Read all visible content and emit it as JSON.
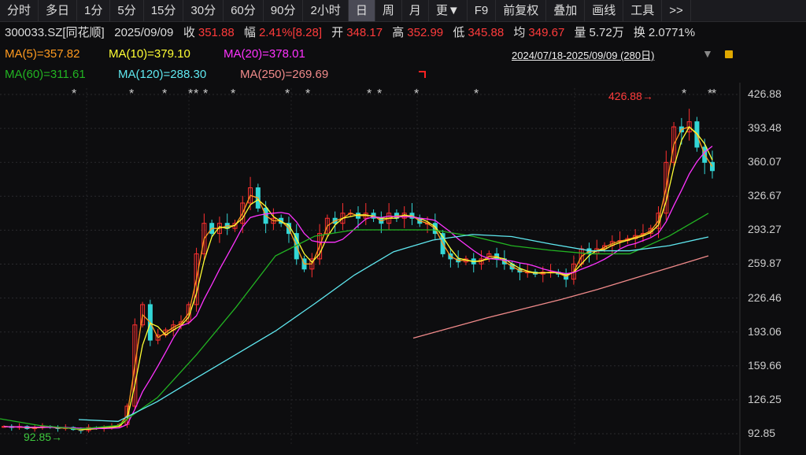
{
  "toolbar": {
    "items": [
      "分时",
      "多日",
      "1分",
      "5分",
      "15分",
      "30分",
      "60分",
      "90分",
      "2小时",
      "日",
      "周",
      "月",
      "更▼",
      "F9",
      "前复权",
      "叠加",
      "画线",
      "工具",
      ">>"
    ],
    "active": "日"
  },
  "quote": {
    "code": "300033.SZ[同花顺]",
    "date": "2025/09/09",
    "close_label": "收",
    "close": "351.88",
    "change_label": "幅",
    "change": "2.41%[8.28]",
    "open_label": "开",
    "open": "348.17",
    "high_label": "高",
    "high": "352.99",
    "low_label": "低",
    "low": "345.88",
    "avg_label": "均",
    "avg": "349.67",
    "volume_label": "量",
    "volume": "5.72万",
    "turnover_label": "换",
    "turnover": "2.0771%"
  },
  "ma_legend": [
    {
      "text": "MA(5)=357.82",
      "color": "#ff9a1f"
    },
    {
      "text": "MA(10)=379.10",
      "color": "#ffff33"
    },
    {
      "text": "MA(20)=378.01",
      "color": "#ff33ff"
    },
    {
      "text": "MA(60)=311.61",
      "color": "#22b422"
    },
    {
      "text": "MA(120)=288.30",
      "color": "#5fe8f0"
    },
    {
      "text": "MA(250)=269.69",
      "color": "#f08a8a"
    }
  ],
  "range": {
    "text": "2024/07/18-2025/09/09 (280日)",
    "dropdown_icon": "triangle-down-icon",
    "lock_icon": "lock-icon"
  },
  "colors": {
    "up": "#ff3030",
    "down": "#33d6d6"
  },
  "chart_data": {
    "type": "candlestick",
    "y_ticks": [
      "426.88",
      "393.48",
      "360.07",
      "326.67",
      "293.27",
      "259.87",
      "226.46",
      "193.06",
      "159.66",
      "126.25",
      "92.85"
    ],
    "ylim": [
      92.85,
      426.88
    ],
    "annotations": {
      "max": "426.88",
      "min": "92.85"
    },
    "closes": [
      100,
      99,
      100,
      98,
      99,
      100,
      99,
      98,
      99,
      97,
      96,
      99,
      98,
      99,
      100,
      102,
      120,
      200,
      220,
      185,
      190,
      195,
      200,
      203,
      220,
      270,
      300,
      290,
      300,
      295,
      300,
      320,
      335,
      315,
      300,
      305,
      300,
      290,
      265,
      255,
      265,
      290,
      305,
      300,
      310,
      310,
      305,
      310,
      305,
      300,
      310,
      305,
      310,
      305,
      300,
      300,
      290,
      270,
      265,
      262,
      265,
      260,
      265,
      270,
      265,
      260,
      255,
      252,
      252,
      250,
      252,
      252,
      250,
      245,
      260,
      275,
      270,
      275,
      278,
      282,
      283,
      285,
      288,
      290,
      295,
      310,
      360,
      395,
      390,
      400,
      375,
      360,
      351.88
    ],
    "ma_series": [
      {
        "name": "MA(60)",
        "color": "#22b422",
        "points": [
          107.6,
          101,
          97.5,
          101,
          128.5,
          171,
          217.6,
          268,
          287.4,
          293.6,
          293.6,
          293.6,
          287.4,
          278,
          273.4,
          270,
          270,
          287.4,
          309.9
        ]
      },
      {
        "name": "MA(120)",
        "color": "#5fe8f0",
        "start": 2,
        "points": [
          106.8,
          105,
          124.6,
          148,
          171,
          194,
          221,
          249,
          272,
          283.5,
          289,
          287,
          279.6,
          273,
          273,
          278,
          286.6
        ]
      },
      {
        "name": "MA(250)",
        "color": "#f08a8a",
        "start": 10.5,
        "points": [
          187,
          197,
          207,
          216,
          225,
          235,
          246,
          257,
          268
        ]
      }
    ]
  }
}
